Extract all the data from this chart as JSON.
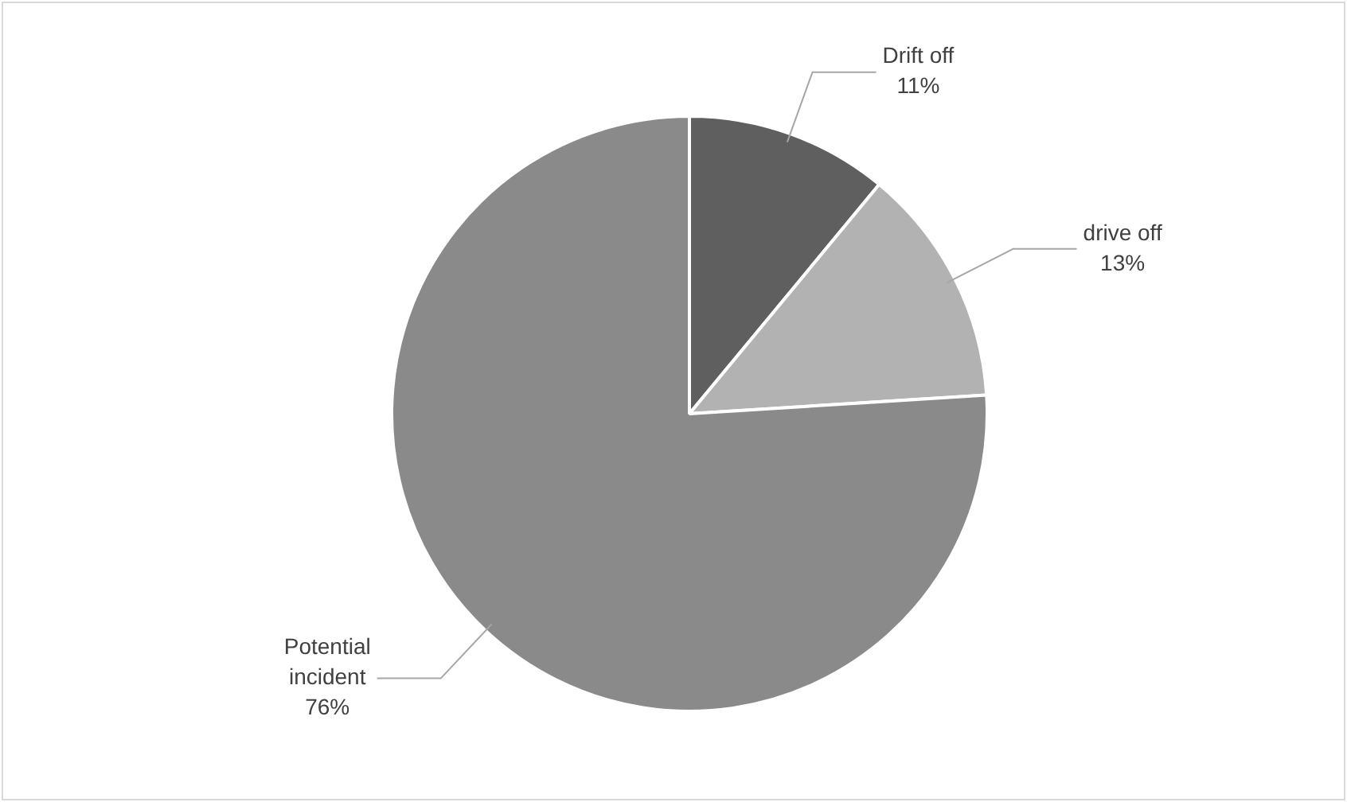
{
  "chart_data": {
    "type": "pie",
    "categories": [
      "Drift off",
      "drive off",
      "Potential incident"
    ],
    "values": [
      11,
      13,
      76
    ],
    "value_labels": [
      "11%",
      "13%",
      "76%"
    ],
    "colors": [
      "#5f5f5f",
      "#b2b2b2",
      "#8a8a8a"
    ],
    "legend": false
  }
}
